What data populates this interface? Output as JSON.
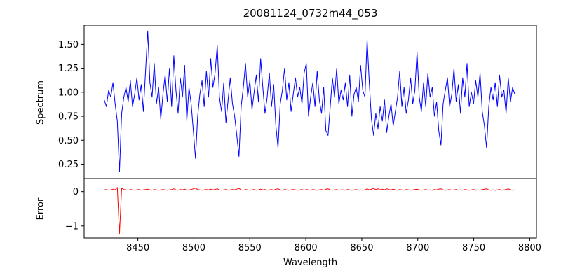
{
  "chart_data": {
    "type": "line",
    "title": "20081124_0732m44_053",
    "xlabel": "Wavelength",
    "x_start": 8420,
    "x_step": 1.94,
    "xlim": [
      8402,
      8806
    ],
    "xticks": [
      8450,
      8500,
      8550,
      8600,
      8650,
      8700,
      8750,
      8800
    ],
    "panels": [
      {
        "name": "spectrum",
        "ylabel": "Spectrum",
        "ylim": [
          0.1,
          1.7
        ],
        "ytick_values": [
          0.25,
          0.5,
          0.75,
          1.0,
          1.25,
          1.5
        ],
        "ytick_labels": [
          "0.25",
          "0.50",
          "0.75",
          "1.00",
          "1.25",
          "1.50"
        ],
        "line_color": "#0000ff",
        "values": [
          0.92,
          0.85,
          1.02,
          0.95,
          1.1,
          0.88,
          0.7,
          0.17,
          0.78,
          0.95,
          1.05,
          0.9,
          1.12,
          0.85,
          0.98,
          1.15,
          0.92,
          1.08,
          0.8,
          1.22,
          1.64,
          1.1,
          0.95,
          1.3,
          0.88,
          1.05,
          0.72,
          0.98,
          1.18,
          0.9,
          1.25,
          0.85,
          1.38,
          1.02,
          0.78,
          1.15,
          0.95,
          1.28,
          0.7,
          1.05,
          0.88,
          0.6,
          0.31,
          0.75,
          0.98,
          1.12,
          0.85,
          1.22,
          0.95,
          1.35,
          1.05,
          1.2,
          1.49,
          0.95,
          0.8,
          1.1,
          0.68,
          0.92,
          1.15,
          0.88,
          0.75,
          0.55,
          0.33,
          0.85,
          1.05,
          1.3,
          0.95,
          1.12,
          0.82,
          1.0,
          1.18,
          0.9,
          1.35,
          1.05,
          0.78,
          0.95,
          1.2,
          0.85,
          1.08,
          0.65,
          0.42,
          0.88,
          1.02,
          1.25,
          0.92,
          1.1,
          0.8,
          0.98,
          1.15,
          0.95,
          1.05,
          0.88,
          1.2,
          1.3,
          0.75,
          0.95,
          1.1,
          0.85,
          1.22,
          0.92,
          0.78,
          1.05,
          0.6,
          0.55,
          0.85,
          1.15,
          0.95,
          1.25,
          0.88,
          1.02,
          0.92,
          1.1,
          0.85,
          1.18,
          0.75,
          0.98,
          1.05,
          0.9,
          1.28,
          1.02,
          0.95,
          1.55,
          1.1,
          0.72,
          0.55,
          0.78,
          0.62,
          0.85,
          0.7,
          0.92,
          0.58,
          0.75,
          0.88,
          0.65,
          0.8,
          0.95,
          1.22,
          0.85,
          1.05,
          0.78,
          0.92,
          1.15,
          0.88,
          1.02,
          1.42,
          0.95,
          0.8,
          1.1,
          0.85,
          1.2,
          0.95,
          1.05,
          0.75,
          0.9,
          0.6,
          0.45,
          0.88,
          1.02,
          1.15,
          0.85,
          0.98,
          1.25,
          0.9,
          1.08,
          0.78,
          1.15,
          0.95,
          1.3,
          0.85,
          1.0,
          0.88,
          1.12,
          0.95,
          1.2,
          0.8,
          0.65,
          0.42,
          0.85,
          1.05,
          0.92,
          1.1,
          0.85,
          1.18,
          0.95,
          1.02,
          0.78,
          1.15,
          0.9,
          1.05,
          0.98
        ]
      },
      {
        "name": "error",
        "ylabel": "Error",
        "ylim": [
          -1.35,
          0.38
        ],
        "ytick_values": [
          0,
          -1
        ],
        "ytick_labels": [
          "0",
          "−1"
        ],
        "line_color": "#ff0000",
        "values": [
          0.05,
          0.06,
          0.04,
          0.05,
          0.07,
          0.05,
          0.12,
          -1.22,
          0.1,
          0.06,
          0.05,
          0.04,
          0.06,
          0.05,
          0.04,
          0.05,
          0.06,
          0.04,
          0.05,
          0.06,
          0.07,
          0.05,
          0.04,
          0.06,
          0.05,
          0.04,
          0.05,
          0.06,
          0.05,
          0.04,
          0.05,
          0.06,
          0.08,
          0.05,
          0.04,
          0.06,
          0.05,
          0.07,
          0.04,
          0.05,
          0.06,
          0.08,
          0.1,
          0.06,
          0.05,
          0.04,
          0.05,
          0.06,
          0.05,
          0.07,
          0.05,
          0.06,
          0.08,
          0.05,
          0.04,
          0.05,
          0.06,
          0.04,
          0.05,
          0.06,
          0.05,
          0.07,
          0.09,
          0.05,
          0.04,
          0.06,
          0.05,
          0.04,
          0.05,
          0.06,
          0.04,
          0.05,
          0.07,
          0.05,
          0.06,
          0.04,
          0.05,
          0.06,
          0.04,
          0.07,
          0.08,
          0.05,
          0.04,
          0.06,
          0.05,
          0.04,
          0.05,
          0.06,
          0.05,
          0.04,
          0.05,
          0.06,
          0.04,
          0.06,
          0.05,
          0.04,
          0.06,
          0.05,
          0.04,
          0.05,
          0.06,
          0.04,
          0.07,
          0.08,
          0.05,
          0.04,
          0.05,
          0.06,
          0.04,
          0.05,
          0.05,
          0.04,
          0.06,
          0.05,
          0.04,
          0.05,
          0.06,
          0.04,
          0.05,
          0.04,
          0.05,
          0.08,
          0.05,
          0.07,
          0.09,
          0.06,
          0.08,
          0.05,
          0.07,
          0.05,
          0.08,
          0.06,
          0.05,
          0.07,
          0.05,
          0.04,
          0.06,
          0.05,
          0.04,
          0.06,
          0.05,
          0.04,
          0.05,
          0.06,
          0.07,
          0.05,
          0.04,
          0.05,
          0.06,
          0.04,
          0.05,
          0.04,
          0.06,
          0.05,
          0.07,
          0.08,
          0.05,
          0.04,
          0.05,
          0.06,
          0.04,
          0.05,
          0.06,
          0.04,
          0.05,
          0.04,
          0.06,
          0.05,
          0.04,
          0.05,
          0.06,
          0.04,
          0.05,
          0.04,
          0.06,
          0.07,
          0.08,
          0.05,
          0.04,
          0.05,
          0.04,
          0.05,
          0.06,
          0.04,
          0.05,
          0.06,
          0.08,
          0.05,
          0.04,
          0.05
        ]
      }
    ]
  }
}
